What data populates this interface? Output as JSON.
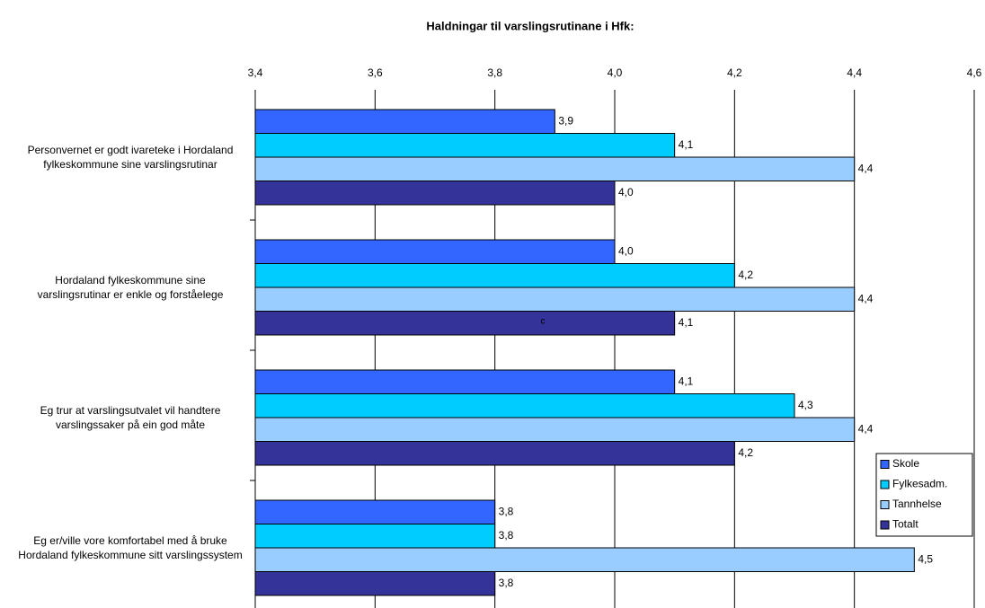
{
  "chart_data": {
    "type": "hbar",
    "title": "Haldningar til varslingsrutinane i Hfk:",
    "categories": [
      "Personvernet er godt ivareteke i Hordaland fylkeskommune  sine varslingsrutinar",
      "Hordaland fylkeskommune sine varslingsrutinar er enkle og forståelege",
      "Eg trur at varslingsutvalet vil handtere varslingssaker på ein god måte",
      "Eg er/ville vore komfortabel med å bruke Hordaland fylkeskommune sitt varslingssystem"
    ],
    "series": [
      {
        "name": "Skole",
        "color": "#3366ff",
        "values": [
          3.9,
          4.0,
          4.1,
          3.8
        ],
        "value_labels": [
          "3,9",
          "4,0",
          "4,1",
          "3,8"
        ]
      },
      {
        "name": "Fylkesadm.",
        "color": "#00ccff",
        "values": [
          4.1,
          4.2,
          4.3,
          3.8
        ],
        "value_labels": [
          "4,1",
          "4,2",
          "4,3",
          "3,8"
        ]
      },
      {
        "name": "Tannhelse",
        "color": "#99ccff",
        "values": [
          4.4,
          4.4,
          4.4,
          4.5
        ],
        "value_labels": [
          "4,4",
          "4,4",
          "4,4",
          "4,5"
        ]
      },
      {
        "name": "Totalt",
        "color": "#333399",
        "values": [
          4.0,
          4.1,
          4.2,
          3.8
        ],
        "value_labels": [
          "4,0",
          "4,1",
          "4,2",
          "3,8"
        ]
      }
    ],
    "xlim": [
      3.4,
      4.6
    ],
    "xticks": [
      {
        "value": 3.4,
        "label": "3,4"
      },
      {
        "value": 3.6,
        "label": "3,6"
      },
      {
        "value": 3.8,
        "label": "3,8"
      },
      {
        "value": 4.0,
        "label": "4,0"
      },
      {
        "value": 4.2,
        "label": "4,2"
      },
      {
        "value": 4.4,
        "label": "4,4"
      },
      {
        "value": 4.6,
        "label": "4,6"
      }
    ],
    "grid": true,
    "legend": "right",
    "annotation": "c"
  }
}
